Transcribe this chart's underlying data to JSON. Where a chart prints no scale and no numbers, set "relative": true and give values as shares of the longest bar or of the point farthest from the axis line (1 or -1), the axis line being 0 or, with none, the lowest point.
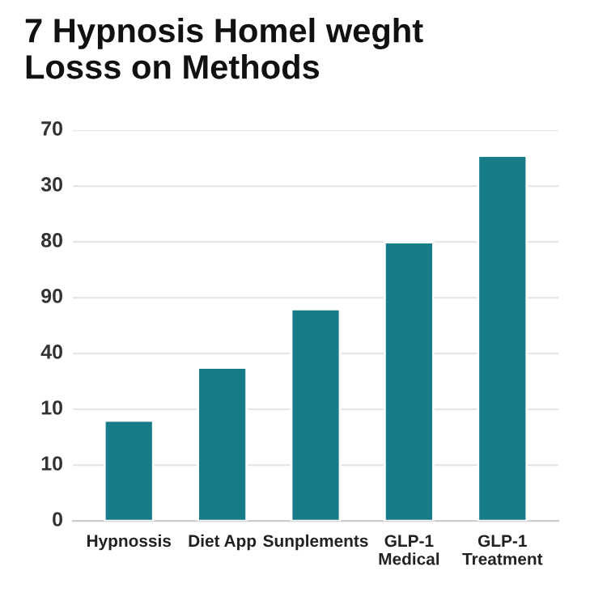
{
  "chart_data": {
    "type": "bar",
    "title": "7 Hypnosis Homel weght\nLosss on Methods",
    "categories": [
      "Hypnossis",
      "Diet App",
      "Sunplements",
      "GLP-1\nMedical",
      "GLP-1\nTreatment"
    ],
    "values": [
      0.275,
      0.42,
      0.58,
      0.763,
      1
    ],
    "color": "#177b8a",
    "relative": true,
    "annotations": [
      "0",
      "10",
      "10",
      "40",
      "90",
      "80",
      "30",
      "70"
    ],
    "grid": "y"
  }
}
